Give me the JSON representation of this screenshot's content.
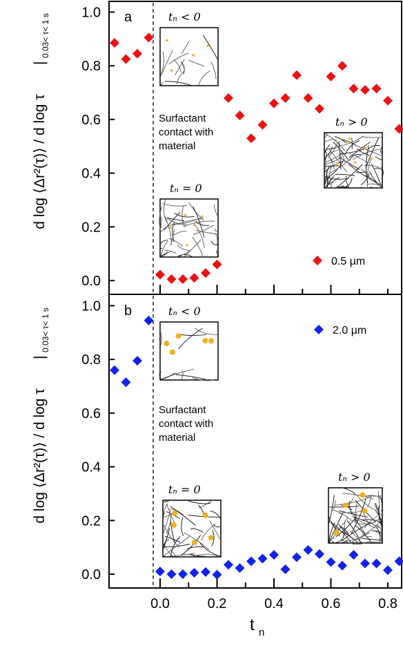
{
  "chart_data": [
    {
      "type": "scatter",
      "panel_label": "a",
      "legend": "0.5 µm",
      "legend_position": "bottom-right",
      "color": "#ee1111",
      "marker": "diamond",
      "ylim": [
        0,
        1.05
      ],
      "xlim": [
        -0.17,
        0.86
      ],
      "yticks": [
        "0.0",
        "0.2",
        "0.4",
        "0.6",
        "0.8",
        "1.0"
      ],
      "series": [
        {
          "name": "0.5 µm",
          "x": [
            -0.16,
            -0.12,
            -0.08,
            -0.04,
            0.0,
            0.04,
            0.08,
            0.12,
            0.16,
            0.2,
            0.24,
            0.28,
            0.32,
            0.36,
            0.4,
            0.44,
            0.48,
            0.52,
            0.56,
            0.6,
            0.64,
            0.68,
            0.72,
            0.76,
            0.8,
            0.84
          ],
          "y": [
            0.885,
            0.825,
            0.845,
            0.905,
            0.022,
            0.005,
            0.005,
            0.01,
            0.028,
            0.06,
            0.68,
            0.615,
            0.53,
            0.58,
            0.66,
            0.68,
            0.765,
            0.68,
            0.64,
            0.76,
            0.8,
            0.715,
            0.71,
            0.715,
            0.67,
            0.565
          ]
        }
      ],
      "annotations": {
        "divider": "Surfactant contact with material",
        "inset_before": "t_n < 0",
        "inset_zero": "t_n = 0",
        "inset_after": "t_n > 0"
      }
    },
    {
      "type": "scatter",
      "panel_label": "b",
      "legend": "2.0 µm",
      "legend_position": "top-right",
      "color": "#1122ee",
      "marker": "diamond",
      "ylim": [
        -0.05,
        1.05
      ],
      "xlim": [
        -0.17,
        0.86
      ],
      "yticks": [
        "0.0",
        "0.2",
        "0.4",
        "0.6",
        "0.8",
        "1.0"
      ],
      "xticks": [
        "0.0",
        "0.2",
        "0.4",
        "0.6",
        "0.8"
      ],
      "series": [
        {
          "name": "2.0 µm",
          "x": [
            -0.16,
            -0.12,
            -0.08,
            -0.04,
            0.0,
            0.04,
            0.08,
            0.12,
            0.16,
            0.2,
            0.24,
            0.28,
            0.32,
            0.36,
            0.4,
            0.44,
            0.48,
            0.52,
            0.56,
            0.6,
            0.64,
            0.68,
            0.72,
            0.76,
            0.8,
            0.84
          ],
          "y": [
            0.76,
            0.715,
            0.795,
            0.945,
            0.01,
            0.0,
            0.0,
            0.005,
            0.008,
            -0.002,
            0.035,
            0.023,
            0.048,
            0.058,
            0.072,
            0.018,
            0.063,
            0.09,
            0.075,
            0.045,
            0.032,
            0.072,
            0.04,
            0.04,
            0.015,
            0.048
          ]
        }
      ],
      "annotations": {
        "divider": "Surfactant contact with material",
        "inset_before": "t_n < 0",
        "inset_zero": "t_n = 0",
        "inset_after": "t_n > 0"
      }
    }
  ],
  "axes": {
    "ylabel_main": "d log ⟨Δr²(τ)⟩ / d log τ",
    "ylabel_sub": "0.03< τ< 1 s",
    "xlabel": "t",
    "xlabel_sub": "n"
  }
}
